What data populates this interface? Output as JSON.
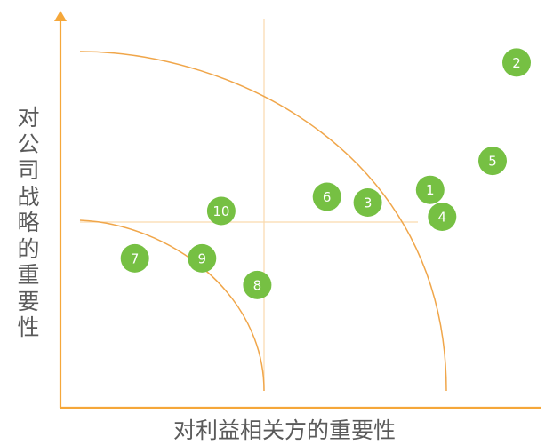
{
  "chart_data": {
    "type": "scatter",
    "title": "",
    "xlabel": "对利益相关方的重要性",
    "ylabel": "对公司战略的重要性",
    "xlim": [
      0,
      10
    ],
    "ylim": [
      0,
      10
    ],
    "grid": false,
    "points": [
      {
        "label": "1",
        "x": 7.7,
        "y": 5.63
      },
      {
        "label": "2",
        "x": 9.5,
        "y": 8.93
      },
      {
        "label": "3",
        "x": 6.4,
        "y": 5.3
      },
      {
        "label": "4",
        "x": 7.95,
        "y": 4.93
      },
      {
        "label": "5",
        "x": 9.0,
        "y": 6.38
      },
      {
        "label": "6",
        "x": 5.55,
        "y": 5.45
      },
      {
        "label": "7",
        "x": 1.55,
        "y": 3.85
      },
      {
        "label": "8",
        "x": 4.1,
        "y": 3.16
      },
      {
        "label": "9",
        "x": 2.95,
        "y": 3.85
      },
      {
        "label": "10",
        "x": 3.35,
        "y": 5.08
      }
    ]
  },
  "colors": {
    "axis": "#f5a73a",
    "curve": "#f0a64a",
    "crosshair": "#f9d9ad",
    "point_fill": "#76c043",
    "point_text": "#ffffff",
    "label_text": "#5a5a5a"
  }
}
